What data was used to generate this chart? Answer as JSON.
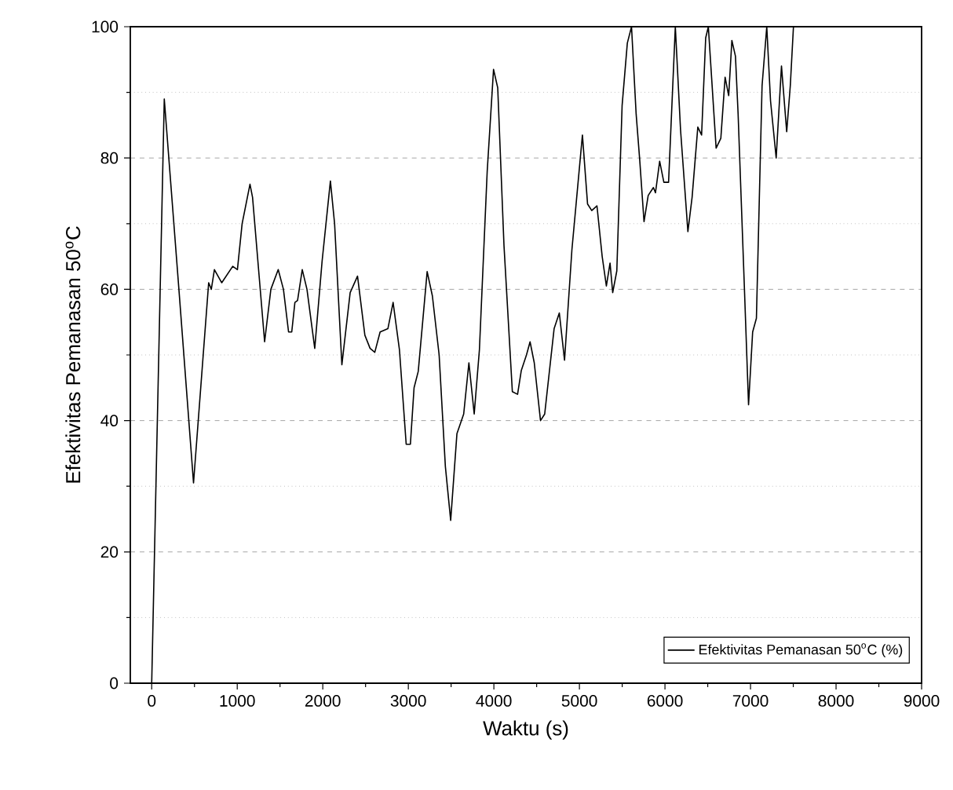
{
  "chart_data": {
    "type": "line",
    "xlabel": "Waktu (s)",
    "ylabel": "Efektivitas Pemanasan 50$^{o}$C",
    "xlim": [
      -250,
      9000
    ],
    "ylim": [
      0,
      100
    ],
    "xticks": [
      0,
      {
        "value": 500,
        "label": null
      },
      1000,
      {
        "value": 1500,
        "label": null
      },
      2000,
      {
        "value": 2500,
        "label": null
      },
      3000,
      {
        "value": 3500,
        "label": null
      },
      4000,
      {
        "value": 4500,
        "label": null
      },
      5000,
      {
        "value": 5500,
        "label": null
      },
      6000,
      {
        "value": 6500,
        "label": null
      },
      7000,
      {
        "value": 7500,
        "label": null
      },
      8000,
      {
        "value": 8500,
        "label": null
      },
      9000
    ],
    "yticks": [
      0,
      {
        "value": 10,
        "label": null
      },
      20,
      {
        "value": 30,
        "label": null
      },
      40,
      {
        "value": 50,
        "label": null
      },
      60,
      {
        "value": 70,
        "label": null
      },
      80,
      {
        "value": 90,
        "label": null
      },
      100
    ],
    "grid": "y",
    "legend": "bottom right",
    "marker": "none",
    "line_style": "solid",
    "series": [
      {
        "name": "Efektivitas Pemanasan 50$^{o}$C (%)",
        "color": "#000000",
        "x": [
          0,
          147,
          318,
          489,
          666,
          697,
          733,
          819,
          947,
          1002,
          1057,
          1149,
          1179,
          1320,
          1393,
          1479,
          1540,
          1600,
          1637,
          1674,
          1705,
          1760,
          1815,
          1906,
          1992,
          2089,
          2138,
          2223,
          2320,
          2406,
          2492,
          2553,
          2608,
          2670,
          2761,
          2822,
          2896,
          2975,
          3024,
          3067,
          3116,
          3220,
          3281,
          3360,
          3433,
          3495,
          3568,
          3647,
          3708,
          3770,
          3831,
          3922,
          3996,
          4045,
          4118,
          4216,
          4277,
          4320,
          4381,
          4423,
          4472,
          4545,
          4594,
          4704,
          4765,
          4826,
          4912,
          5035,
          5095,
          5144,
          5205,
          5266,
          5315,
          5358,
          5389,
          5437,
          5499,
          5560,
          5609,
          5663,
          5706,
          5755,
          5804,
          5865,
          5889,
          5938,
          5987,
          6042,
          6121,
          6182,
          6268,
          6317,
          6384,
          6428,
          6476,
          6507,
          6598,
          6653,
          6703,
          6745,
          6782,
          6824,
          6855,
          6928,
          6977,
          7025,
          7069,
          7135,
          7190,
          7234,
          7300,
          7362,
          7423,
          7465,
          7502
        ],
        "values": [
          0,
          89,
          60,
          30.5,
          61,
          60,
          63,
          61,
          63.5,
          63,
          70,
          76,
          74,
          52,
          60,
          63,
          60,
          53.5,
          53.5,
          58,
          58.3,
          63,
          60,
          51,
          64.3,
          76.5,
          70,
          48.5,
          59.5,
          62,
          53,
          51,
          50.4,
          53.5,
          54,
          58,
          50.8,
          36.4,
          36.4,
          45,
          47.5,
          62.7,
          59,
          50,
          33,
          24.8,
          38,
          41,
          48.8,
          41,
          50.8,
          78,
          93.5,
          90.7,
          66.7,
          44.4,
          44,
          47.6,
          50,
          52,
          48.8,
          40,
          41,
          54,
          56.4,
          49.2,
          66,
          83.5,
          73,
          72,
          72.7,
          65,
          60.5,
          64,
          59.5,
          62.8,
          88,
          97.5,
          100,
          86.7,
          79.5,
          70.3,
          74.3,
          75.5,
          74.7,
          79.5,
          76.3,
          76.3,
          100,
          84.3,
          68.8,
          74,
          84.7,
          83.5,
          98.3,
          100,
          81.5,
          83,
          92.3,
          89.5,
          97.9,
          95.5,
          86.7,
          60.4,
          42.4,
          53.5,
          55.6,
          91,
          100,
          88.7,
          80,
          94,
          84,
          91,
          100
        ]
      }
    ]
  }
}
